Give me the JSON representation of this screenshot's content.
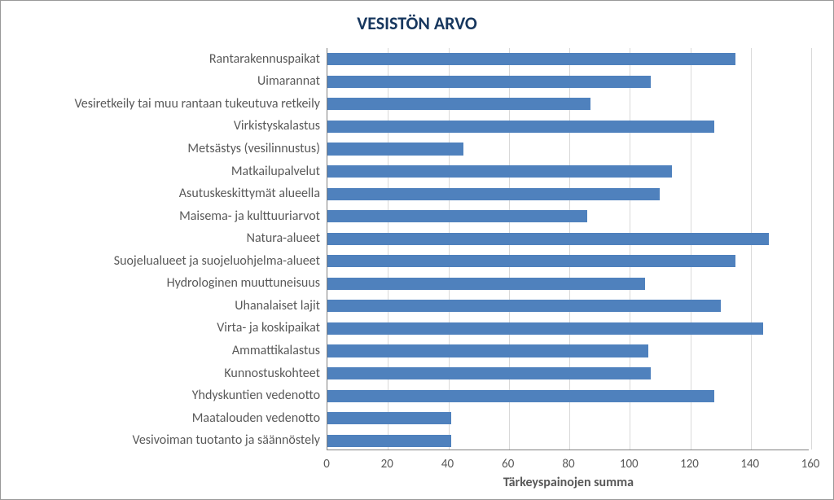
{
  "chart": {
    "type": "bar-horizontal",
    "title": "VESISTÖN ARVO",
    "title_fontsize": 22,
    "title_color": "#17375e",
    "xlabel": "Tärkeyspainojen summa",
    "xlabel_fontsize": 16,
    "label_fontsize": 16,
    "tick_fontsize": 15,
    "text_color": "#595959",
    "bar_color": "#4f81bd",
    "background_color": "#ffffff",
    "grid_color": "#d9d9d9",
    "axis_color": "#808080",
    "border_color": "#999999",
    "xlim": [
      0,
      160
    ],
    "xtick_step": 20,
    "xticks": [
      0,
      20,
      40,
      60,
      80,
      100,
      120,
      140,
      160
    ],
    "bar_fill_ratio": 0.55,
    "categories": [
      "Rantarakennuspaikat",
      "Uimarannat",
      "Vesiretkeily tai muu rantaan tukeutuva retkeily",
      "Virkistyskalastus",
      "Metsästys (vesilinnustus)",
      "Matkailupalvelut",
      "Asutuskeskittymät alueella",
      "Maisema- ja kulttuuriarvot",
      "Natura-alueet",
      "Suojelualueet ja suojeluohjelma-alueet",
      "Hydrologinen muuttuneisuus",
      "Uhanalaiset lajit",
      "Virta- ja koskipaikat",
      "Ammattikalastus",
      "Kunnostuskohteet",
      "Yhdyskuntien vedenotto",
      "Maatalouden vedenotto",
      "Vesivoiman tuotanto ja säännöstely"
    ],
    "values": [
      135,
      107,
      87,
      128,
      45,
      114,
      110,
      86,
      146,
      135,
      105,
      130,
      144,
      106,
      107,
      128,
      41,
      41
    ]
  }
}
